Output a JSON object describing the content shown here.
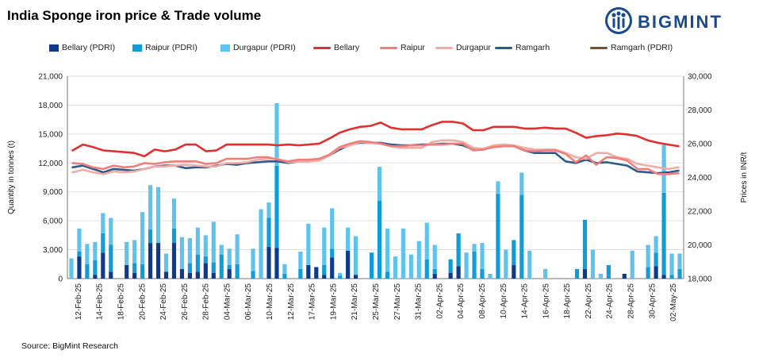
{
  "header": {
    "title": "India Sponge iron price & Trade volume"
  },
  "brand": {
    "name": "BIGMINT",
    "icon": "bigmint-logo-icon",
    "color": "#1a4a8e"
  },
  "footer": {
    "source": "Source: BigMint Research"
  },
  "legend": [
    {
      "label": "Bellary (PDRI)",
      "kind": "bar",
      "color": "#0d3a8c"
    },
    {
      "label": "Raipur (PDRI)",
      "kind": "bar",
      "color": "#0e9ddb"
    },
    {
      "label": "Durgapur (PDRI)",
      "kind": "bar",
      "color": "#5ec4ee"
    },
    {
      "label": "Bellary",
      "kind": "line",
      "color": "#e03030"
    },
    {
      "label": "Raipur",
      "kind": "line",
      "color": "#ef7f7a"
    },
    {
      "label": "Durgapur",
      "kind": "line",
      "color": "#f2aca6"
    },
    {
      "label": "Ramgarh",
      "kind": "line",
      "color": "#2d5a8e"
    },
    {
      "label": "Ramgarh (PDRI)",
      "kind": "line",
      "color": "#8b4a1c"
    }
  ],
  "chart_data": {
    "type": "bar",
    "title": "India Sponge iron price & Trade volume",
    "ylabel": "Quantity in tonnes (t)",
    "y2label": "Prices in INR/t",
    "ylim": [
      0,
      21000
    ],
    "y_ticks": [
      "0",
      "3,000",
      "6,000",
      "9,000",
      "12,000",
      "15,000",
      "18,000",
      "21,000"
    ],
    "y2lim": [
      18000,
      30000
    ],
    "y2_ticks": [
      "18,000",
      "20,000",
      "22,000",
      "24,000",
      "26,000",
      "28,000",
      "30,000"
    ],
    "x_tick_labels": [
      "12-Feb-25",
      "14-Feb-25",
      "18-Feb-25",
      "20-Feb-25",
      "24-Feb-25",
      "26-Feb-25",
      "28-Feb-25",
      "04-Mar-25",
      "06-Mar-25",
      "10-Mar-25",
      "12-Mar-25",
      "17-Mar-25",
      "19-Mar-25",
      "21-Mar-25",
      "25-Mar-25",
      "27-Mar-25",
      "31-Mar-25",
      "02-Apr-25",
      "04-Apr-25",
      "08-Apr-25",
      "10-Apr-25",
      "14-Apr-25",
      "16-Apr-25",
      "18-Apr-25",
      "22-Apr-25",
      "24-Apr-25",
      "28-Apr-25",
      "30-Apr-25",
      "02-May-25"
    ],
    "stacked_series": [
      {
        "name": "Bellary (PDRI)",
        "color": "#0d3a8c",
        "values": [
          0,
          2300,
          0,
          400,
          2700,
          700,
          0,
          1400,
          600,
          0,
          3700,
          3700,
          700,
          3700,
          1000,
          600,
          700,
          1600,
          600,
          0,
          1000,
          0,
          0,
          0,
          0,
          3300,
          3200,
          0,
          0,
          0,
          1400,
          1200,
          400,
          2200,
          0,
          2900,
          400,
          0,
          0,
          0,
          0,
          0,
          0,
          0,
          0,
          0,
          500,
          0,
          600,
          1300,
          0,
          0,
          0,
          0,
          0,
          0,
          1400,
          0,
          0,
          0,
          0,
          0,
          0,
          0,
          0,
          1000,
          0,
          0,
          0,
          0,
          500,
          0,
          0,
          0,
          1300,
          400,
          0,
          0
        ]
      },
      {
        "name": "Raipur (PDRI)",
        "color": "#0e9ddb",
        "values": [
          0,
          500,
          1500,
          1500,
          2000,
          2800,
          0,
          0,
          1000,
          1500,
          1400,
          0,
          0,
          1500,
          0,
          1000,
          1800,
          700,
          1100,
          2500,
          400,
          1500,
          0,
          800,
          0,
          3000,
          8500,
          500,
          0,
          1000,
          0,
          0,
          1000,
          900,
          300,
          0,
          0,
          0,
          2700,
          8100,
          700,
          0,
          0,
          0,
          0,
          2000,
          500,
          0,
          1400,
          3400,
          0,
          2800,
          1000,
          0,
          8800,
          0,
          2600,
          8700,
          0,
          0,
          0,
          0,
          0,
          0,
          1000,
          5100,
          0,
          0,
          1400,
          0,
          0,
          0,
          0,
          1200,
          1400,
          8500,
          400,
          1000
        ]
      },
      {
        "name": "Durgapur (PDRI)",
        "color": "#5ec4ee",
        "values": [
          2100,
          2400,
          2100,
          1900,
          2100,
          2800,
          0,
          2400,
          2400,
          5400,
          4600,
          5800,
          1900,
          3100,
          3300,
          2600,
          2800,
          2200,
          4200,
          1000,
          1700,
          3100,
          0,
          2300,
          7200,
          1600,
          6500,
          1000,
          0,
          1800,
          4300,
          0,
          3900,
          4200,
          300,
          2400,
          4000,
          0,
          0,
          3500,
          4500,
          2300,
          5200,
          2500,
          3900,
          3800,
          2500,
          0,
          0,
          0,
          2700,
          800,
          2700,
          500,
          1300,
          3000,
          0,
          2300,
          2900,
          0,
          1000,
          0,
          0,
          0,
          0,
          0,
          3000,
          500,
          0,
          0,
          0,
          2900,
          0,
          2300,
          1700,
          5000,
          2200,
          1600
        ]
      }
    ],
    "line_series": [
      {
        "name": "Bellary",
        "color": "#e03030",
        "width": 2.6,
        "values": [
          25600,
          25950,
          25800,
          25600,
          25550,
          25500,
          25450,
          25250,
          25650,
          25550,
          25650,
          25950,
          25950,
          25550,
          25600,
          25950,
          25950,
          25950,
          25950,
          25950,
          25900,
          25950,
          25900,
          25950,
          26000,
          26300,
          26650,
          26850,
          27000,
          27050,
          27250,
          26950,
          26850,
          26850,
          26850,
          27100,
          27300,
          27300,
          27200,
          26800,
          26800,
          27000,
          27000,
          27000,
          26900,
          26900,
          26950,
          26900,
          26900,
          26650,
          26350,
          26450,
          26500,
          26600,
          26550,
          26450,
          26200,
          26050,
          25950,
          25850
        ]
      },
      {
        "name": "Raipur",
        "color": "#ef7f7a",
        "width": 2.6,
        "values": [
          24850,
          24800,
          24600,
          24500,
          24700,
          24600,
          24650,
          24850,
          24800,
          24900,
          24950,
          24950,
          24950,
          24800,
          24850,
          25100,
          25100,
          25100,
          25200,
          25200,
          25050,
          24950,
          25050,
          25050,
          25100,
          25350,
          25800,
          26000,
          26150,
          26100,
          26000,
          25850,
          25850,
          25900,
          25900,
          25950,
          25950,
          26000,
          26000,
          25600,
          25650,
          25800,
          25850,
          25850,
          25600,
          25550,
          25600,
          25600,
          25400,
          24900,
          25300,
          24750,
          25200,
          25150,
          25000,
          24500,
          24500,
          24200,
          24200,
          24250
        ]
      },
      {
        "name": "Durgapur",
        "color": "#f2aca6",
        "width": 2.6,
        "values": [
          24300,
          24450,
          24300,
          24200,
          24350,
          24300,
          24350,
          24500,
          24650,
          24650,
          24700,
          24750,
          24700,
          24650,
          24650,
          24850,
          24850,
          24900,
          25050,
          25100,
          25100,
          24900,
          24950,
          24950,
          25000,
          25300,
          25750,
          25900,
          26100,
          26050,
          26000,
          25850,
          25750,
          25750,
          25750,
          26100,
          26200,
          26200,
          26100,
          25750,
          25700,
          25900,
          25950,
          25900,
          25750,
          25650,
          25650,
          25650,
          25450,
          25200,
          25100,
          25450,
          25450,
          25200,
          25100,
          24800,
          24700,
          24600,
          24500,
          24600
        ]
      },
      {
        "name": "Ramgarh",
        "color": "#2d5a8e",
        "width": 2.6,
        "values": [
          24600,
          24700,
          24500,
          24300,
          24500,
          24450,
          24400,
          24500,
          24650,
          24700,
          24700,
          24550,
          24600,
          24600,
          24700,
          24800,
          24750,
          24850,
          24900,
          24950,
          24950,
          24850,
          24950,
          24950,
          25050,
          25300,
          25650,
          25950,
          26050,
          26050,
          26050,
          25950,
          25900,
          25900,
          25950,
          25950,
          26000,
          26000,
          25900,
          25650,
          25650,
          25850,
          25900,
          25850,
          25600,
          25450,
          25450,
          25450,
          24950,
          24850,
          25050,
          24850,
          24900,
          24800,
          24700,
          24350,
          24300,
          24250,
          24300,
          24400
        ]
      },
      {
        "name": "Ramgarh (PDRI)",
        "color": "#8b4a1c",
        "width": 1.2,
        "values": [
          24600,
          24700,
          24500,
          24300,
          24500,
          24450,
          24400,
          24500,
          24650,
          24700,
          24700,
          24550,
          24600,
          24600,
          24700,
          24800,
          24750,
          24850,
          24900,
          24950,
          24950,
          24850,
          24950,
          24950,
          25050,
          25300,
          25650,
          25950,
          26050,
          26050,
          26050,
          25950,
          25900,
          25900,
          25950,
          25950,
          26000,
          26000,
          25900,
          25650,
          25650,
          25850,
          25900,
          25850,
          25600,
          25450,
          25450,
          25450,
          24950,
          24850,
          25050,
          24850,
          24900,
          24800,
          24700,
          24350,
          24300,
          24250,
          24300,
          24400
        ]
      }
    ],
    "grid": true,
    "legend_position": "top"
  }
}
